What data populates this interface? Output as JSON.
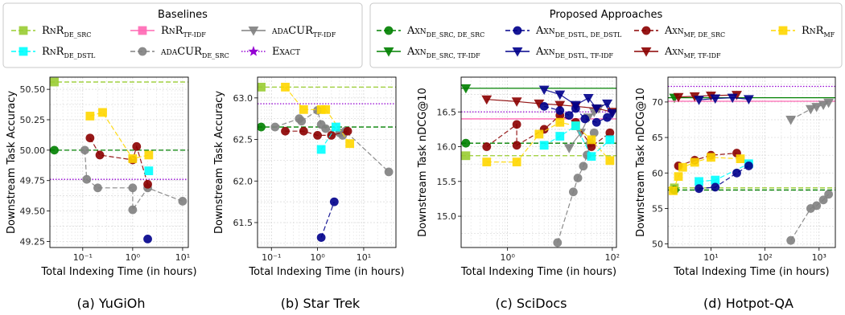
{
  "legends": {
    "baselines": {
      "title": "Baselines",
      "entries": [
        {
          "text": "RnR",
          "sub": "DE_SRC",
          "color": "#9acd32",
          "marker": "square",
          "dash": "dashed"
        },
        {
          "text": "RnR",
          "sub": "TF-IDF",
          "color": "#ff69b4",
          "marker": "square",
          "dash": "solid"
        },
        {
          "text": "adaCUR",
          "sub": "TF-IDF",
          "color": "#808080",
          "marker": "tri-down",
          "dash": "solid"
        },
        {
          "text": "RnR",
          "sub": "DE_DSTL",
          "color": "#00ffff",
          "marker": "square",
          "dash": "dashed"
        },
        {
          "text": "adaCUR",
          "sub": "DE_SRC",
          "color": "#808080",
          "marker": "circle",
          "dash": "dashed"
        },
        {
          "text": "Exact",
          "sub": "",
          "color": "#9400d3",
          "marker": "star",
          "dash": "dotted"
        }
      ]
    },
    "proposed": {
      "title": "Proposed Approaches",
      "entries": [
        {
          "text": "Axn",
          "sub": "DE_SRC, DE_SRC",
          "color": "#008000",
          "marker": "circle",
          "dash": "dashed"
        },
        {
          "text": "Axn",
          "sub": "DE_DSTL, DE_DSTL",
          "color": "#00008b",
          "marker": "circle",
          "dash": "dashed"
        },
        {
          "text": "Axn",
          "sub": "MF, DE_SRC",
          "color": "#8b0000",
          "marker": "circle",
          "dash": "dashed"
        },
        {
          "text": "RnR",
          "sub": "MF",
          "color": "#ffd700",
          "marker": "square",
          "dash": "dashed"
        },
        {
          "text": "Axn",
          "sub": "DE_SRC, TF-IDF",
          "color": "#008000",
          "marker": "tri-down",
          "dash": "solid"
        },
        {
          "text": "Axn",
          "sub": "DE_DSTL, TF-IDF",
          "color": "#00008b",
          "marker": "tri-down",
          "dash": "solid"
        },
        {
          "text": "Axn",
          "sub": "MF, TF-IDF",
          "color": "#8b0000",
          "marker": "tri-down",
          "dash": "solid"
        }
      ]
    }
  },
  "chart_data": [
    {
      "type": "scatter",
      "caption": "(a) YuGiOh",
      "xlabel": "Total Indexing Time (in hours)",
      "ylabel": "Downstream Task Accuracy",
      "xscale": "log",
      "xlim": [
        0.022,
        13
      ],
      "ylim": [
        49.2,
        50.6
      ],
      "xticks": [
        {
          "v": 0.1,
          "label": "10⁻¹"
        },
        {
          "v": 1,
          "label": "10⁰"
        },
        {
          "v": 10,
          "label": "10¹"
        }
      ],
      "yticks": [
        {
          "v": 49.25,
          "label": "49.25"
        },
        {
          "v": 49.5,
          "label": "49.50"
        },
        {
          "v": 49.75,
          "label": "49.75"
        },
        {
          "v": 50.0,
          "label": "50.00"
        },
        {
          "v": 50.25,
          "label": "50.25"
        },
        {
          "v": 50.5,
          "label": "50.50"
        }
      ],
      "hlines": [
        {
          "name": "RnR DE_SRC",
          "y": 50.56,
          "color": "#9acd32",
          "dash": "dashed",
          "marker": "square",
          "marker_x": 0.027
        },
        {
          "name": "Axn DE_SRC, DE_SRC",
          "y": 50.0,
          "color": "#008000",
          "dash": "dashed",
          "marker": "circle",
          "marker_x": 0.027
        },
        {
          "name": "Exact",
          "y": 49.76,
          "color": "#9400d3",
          "dash": "dotted",
          "marker": "",
          "marker_x": 0
        }
      ],
      "series": [
        {
          "name": "adaCUR DE_SRC",
          "color": "#808080",
          "marker": "circle",
          "dash": "dashed",
          "x": [
            0.11,
            0.12,
            0.2,
            1.0,
            1.0,
            2.0,
            10.0
          ],
          "y": [
            50.0,
            49.76,
            49.69,
            49.69,
            49.51,
            49.69,
            49.58
          ]
        },
        {
          "name": "Axn MF, DE_SRC",
          "color": "#8b0000",
          "marker": "circle",
          "dash": "dashed",
          "x": [
            0.14,
            0.22,
            1.0,
            1.2,
            2.0
          ],
          "y": [
            50.1,
            49.96,
            49.92,
            50.03,
            49.72
          ]
        },
        {
          "name": "RnR MF",
          "color": "#ffd700",
          "marker": "square",
          "dash": "dashed",
          "x": [
            0.14,
            0.25,
            1.0,
            2.1
          ],
          "y": [
            50.28,
            50.31,
            49.93,
            49.96
          ]
        },
        {
          "name": "RnR DE_DSTL",
          "color": "#00ffff",
          "marker": "square",
          "dash": "dashed",
          "x": [
            2.1
          ],
          "y": [
            49.83
          ]
        },
        {
          "name": "Axn DE_DSTL, DE_DSTL",
          "color": "#00008b",
          "marker": "circle",
          "dash": "dashed",
          "x": [
            2.0
          ],
          "y": [
            49.27
          ]
        }
      ]
    },
    {
      "type": "scatter",
      "caption": "(b) Star Trek",
      "xlabel": "Total Indexing Time (in hours)",
      "ylabel": "Downstream Task Accuracy",
      "xscale": "log",
      "xlim": [
        0.05,
        50
      ],
      "ylim": [
        61.2,
        63.25
      ],
      "xticks": [
        {
          "v": 0.1,
          "label": "10⁻¹"
        },
        {
          "v": 1,
          "label": "10⁰"
        },
        {
          "v": 10,
          "label": "10¹"
        }
      ],
      "yticks": [
        {
          "v": 61.5,
          "label": "61.5"
        },
        {
          "v": 62.0,
          "label": "62.0"
        },
        {
          "v": 62.5,
          "label": "62.5"
        },
        {
          "v": 63.0,
          "label": "63.0"
        }
      ],
      "hlines": [
        {
          "name": "RnR DE_SRC",
          "y": 63.13,
          "color": "#9acd32",
          "dash": "dashed",
          "marker": "square",
          "marker_x": 0.06
        },
        {
          "name": "Exact",
          "y": 62.93,
          "color": "#9400d3",
          "dash": "dotted",
          "marker": "",
          "marker_x": 0
        },
        {
          "name": "Axn DE_SRC, DE_SRC",
          "y": 62.65,
          "color": "#008000",
          "dash": "dashed",
          "marker": "circle",
          "marker_x": 0.06
        }
      ],
      "series": [
        {
          "name": "adaCUR DE_SRC",
          "color": "#808080",
          "marker": "circle",
          "dash": "dashed",
          "x": [
            0.12,
            0.4,
            0.45,
            1.0,
            1.2,
            1.5,
            3.0,
            3.5,
            4.0,
            35
          ],
          "y": [
            62.65,
            62.75,
            62.72,
            62.85,
            62.68,
            62.63,
            62.58,
            62.55,
            62.6,
            62.11
          ]
        },
        {
          "name": "Axn MF, DE_SRC",
          "color": "#8b0000",
          "marker": "circle",
          "dash": "dashed",
          "x": [
            0.2,
            0.5,
            1.0,
            2.0,
            4.5
          ],
          "y": [
            62.6,
            62.6,
            62.55,
            62.55,
            62.6
          ]
        },
        {
          "name": "RnR MF",
          "color": "#ffd700",
          "marker": "square",
          "dash": "dashed",
          "x": [
            0.2,
            0.5,
            1.2,
            1.5,
            5.0
          ],
          "y": [
            63.13,
            62.86,
            62.86,
            62.86,
            62.45
          ]
        },
        {
          "name": "RnR DE_DSTL",
          "color": "#00ffff",
          "marker": "square",
          "dash": "dashed",
          "x": [
            1.2,
            2.5
          ],
          "y": [
            62.38,
            62.65
          ]
        },
        {
          "name": "Axn DE_DSTL, DE_DSTL",
          "color": "#00008b",
          "marker": "circle",
          "dash": "dashed",
          "x": [
            1.2,
            2.3
          ],
          "y": [
            61.32,
            61.75
          ]
        }
      ]
    },
    {
      "type": "scatter",
      "caption": "(c) SciDocs",
      "xlabel": "Total Indexing Time (in hours)",
      "ylabel": "Downstream Task nDCG@10",
      "xscale": "log",
      "xlim": [
        0.13,
        120
      ],
      "ylim": [
        14.55,
        17.0
      ],
      "xticks": [
        {
          "v": 1,
          "label": "10⁰"
        },
        {
          "v": 100,
          "label": "10²"
        }
      ],
      "yticks": [
        {
          "v": 15.0,
          "label": "15.0"
        },
        {
          "v": 15.5,
          "label": "15.5"
        },
        {
          "v": 16.0,
          "label": "16.0"
        },
        {
          "v": 16.5,
          "label": "16.5"
        }
      ],
      "hlines": [
        {
          "name": "Axn DE_SRC, TF-IDF",
          "y": 16.84,
          "color": "#008000",
          "dash": "solid",
          "marker": "tri-down",
          "marker_x": 0.16
        },
        {
          "name": "Exact",
          "y": 16.5,
          "color": "#9400d3",
          "dash": "dotted",
          "marker": "",
          "marker_x": 0
        },
        {
          "name": "RnR TF-IDF",
          "y": 16.4,
          "color": "#ff69b4",
          "dash": "solid",
          "marker": "",
          "marker_x": 0
        },
        {
          "name": "Axn DE_SRC, DE_SRC",
          "y": 16.05,
          "color": "#008000",
          "dash": "dashed",
          "marker": "circle",
          "marker_x": 0.16
        },
        {
          "name": "RnR DE_SRC",
          "y": 15.87,
          "color": "#9acd32",
          "dash": "dashed",
          "marker": "square",
          "marker_x": 0.16
        }
      ],
      "series": [
        {
          "name": "adaCUR DE_SRC",
          "color": "#808080",
          "marker": "circle",
          "dash": "dashed",
          "x": [
            9,
            18,
            22,
            28,
            33,
            38,
            45
          ],
          "y": [
            14.62,
            15.35,
            15.55,
            15.72,
            15.88,
            16.05,
            16.2
          ]
        },
        {
          "name": "adaCUR TF-IDF",
          "color": "#808080",
          "marker": "tri-down",
          "dash": "solid",
          "x": [
            15,
            25,
            35,
            45,
            55
          ],
          "y": [
            15.98,
            16.2,
            16.42,
            16.5,
            16.55
          ]
        },
        {
          "name": "Axn MF, DE_SRC",
          "color": "#8b0000",
          "marker": "circle",
          "dash": "dashed",
          "x": [
            0.4,
            1.5,
            1.5,
            5,
            10,
            20,
            40,
            90
          ],
          "y": [
            16.0,
            16.32,
            16.02,
            16.25,
            16.45,
            16.35,
            16.0,
            16.2
          ]
        },
        {
          "name": "Axn MF, TF-IDF",
          "color": "#8b0000",
          "marker": "tri-down",
          "dash": "solid",
          "x": [
            0.4,
            1.5,
            4,
            10,
            20,
            50,
            100
          ],
          "y": [
            16.68,
            16.65,
            16.62,
            16.6,
            16.58,
            16.55,
            16.5
          ]
        },
        {
          "name": "Axn DE_DSTL, DE_DSTL",
          "color": "#00008b",
          "marker": "circle",
          "dash": "dashed",
          "x": [
            5,
            10,
            15,
            20,
            30,
            50,
            80
          ],
          "y": [
            16.58,
            16.52,
            16.45,
            16.55,
            16.4,
            16.35,
            16.42
          ]
        },
        {
          "name": "Axn DE_DSTL, TF-IDF",
          "color": "#00008b",
          "marker": "tri-down",
          "dash": "solid",
          "x": [
            5,
            10,
            20,
            35,
            50,
            80,
            100
          ],
          "y": [
            16.82,
            16.75,
            16.6,
            16.7,
            16.55,
            16.62,
            16.48
          ]
        },
        {
          "name": "RnR MF",
          "color": "#ffd700",
          "marker": "square",
          "dash": "dashed",
          "x": [
            0.4,
            1.5,
            4,
            10,
            20,
            40,
            90
          ],
          "y": [
            15.78,
            15.78,
            16.18,
            16.35,
            16.3,
            16.1,
            15.8
          ]
        },
        {
          "name": "RnR DE_DSTL",
          "color": "#00ffff",
          "marker": "square",
          "dash": "dashed",
          "x": [
            5,
            10,
            20,
            40,
            90
          ],
          "y": [
            16.02,
            16.15,
            16.3,
            15.86,
            16.1
          ]
        }
      ]
    },
    {
      "type": "scatter",
      "caption": "(d) Hotpot-QA",
      "xlabel": "Total Indexing Time (in hours)",
      "ylabel": "Downstream Task nDCG@10",
      "xscale": "log",
      "xlim": [
        1.6,
        2000
      ],
      "ylim": [
        49.5,
        73.5
      ],
      "xticks": [
        {
          "v": 10,
          "label": "10¹"
        },
        {
          "v": 100,
          "label": "10²"
        },
        {
          "v": 1000,
          "label": "10³"
        }
      ],
      "yticks": [
        {
          "v": 50,
          "label": "50"
        },
        {
          "v": 55,
          "label": "55"
        },
        {
          "v": 60,
          "label": "60"
        },
        {
          "v": 65,
          "label": "65"
        },
        {
          "v": 70,
          "label": "70"
        }
      ],
      "hlines": [
        {
          "name": "Exact",
          "y": 72.2,
          "color": "#9400d3",
          "dash": "dotted",
          "marker": "",
          "marker_x": 0
        },
        {
          "name": "Axn DE_SRC, TF-IDF",
          "y": 70.6,
          "color": "#008000",
          "dash": "solid",
          "marker": "tri-down",
          "marker_x": 2.1
        },
        {
          "name": "RnR TF-IDF",
          "y": 70.1,
          "color": "#ff69b4",
          "dash": "solid",
          "marker": "",
          "marker_x": 0
        },
        {
          "name": "RnR DE_SRC",
          "y": 57.9,
          "color": "#9acd32",
          "dash": "dashed",
          "marker": "square",
          "marker_x": 2.1
        },
        {
          "name": "Axn DE_SRC, DE_SRC",
          "y": 57.6,
          "color": "#008000",
          "dash": "dashed",
          "marker": "circle",
          "marker_x": 2.1
        }
      ],
      "series": [
        {
          "name": "adaCUR TF-IDF",
          "color": "#808080",
          "marker": "tri-down",
          "dash": "dashed",
          "x": [
            300,
            700,
            900,
            1200,
            1500
          ],
          "y": [
            67.5,
            69.0,
            69.3,
            69.6,
            69.9
          ]
        },
        {
          "name": "adaCUR DE_SRC",
          "color": "#808080",
          "marker": "circle",
          "dash": "dashed",
          "x": [
            300,
            700,
            900,
            1200,
            1500
          ],
          "y": [
            50.5,
            55.0,
            55.4,
            56.2,
            57.0
          ]
        },
        {
          "name": "Axn MF, TF-IDF",
          "color": "#8b0000",
          "marker": "tri-down",
          "dash": "solid",
          "x": [
            2.5,
            5,
            10,
            30
          ],
          "y": [
            70.7,
            70.8,
            70.9,
            71.0
          ]
        },
        {
          "name": "Axn DE_DSTL, TF-IDF",
          "color": "#00008b",
          "marker": "tri-down",
          "dash": "solid",
          "x": [
            6,
            12,
            25,
            50
          ],
          "y": [
            70.3,
            70.5,
            70.6,
            70.4
          ]
        },
        {
          "name": "Axn MF, DE_SRC",
          "color": "#8b0000",
          "marker": "circle",
          "dash": "dashed",
          "x": [
            2.5,
            5,
            10,
            30
          ],
          "y": [
            61.0,
            61.8,
            62.5,
            62.8
          ]
        },
        {
          "name": "RnR MF",
          "color": "#ffd700",
          "marker": "square",
          "dash": "dashed",
          "x": [
            2,
            2.5,
            3,
            5,
            10,
            35
          ],
          "y": [
            57.5,
            59.5,
            60.8,
            61.5,
            62.2,
            62.0
          ]
        },
        {
          "name": "RnR DE_DSTL",
          "color": "#00ffff",
          "marker": "square",
          "dash": "dashed",
          "x": [
            6,
            12,
            50
          ],
          "y": [
            58.8,
            59.0,
            61.3
          ]
        },
        {
          "name": "Axn DE_DSTL, DE_DSTL",
          "color": "#00008b",
          "marker": "circle",
          "dash": "dashed",
          "x": [
            6,
            12,
            30,
            50
          ],
          "y": [
            57.8,
            58.0,
            60.0,
            61.0
          ]
        }
      ]
    }
  ]
}
